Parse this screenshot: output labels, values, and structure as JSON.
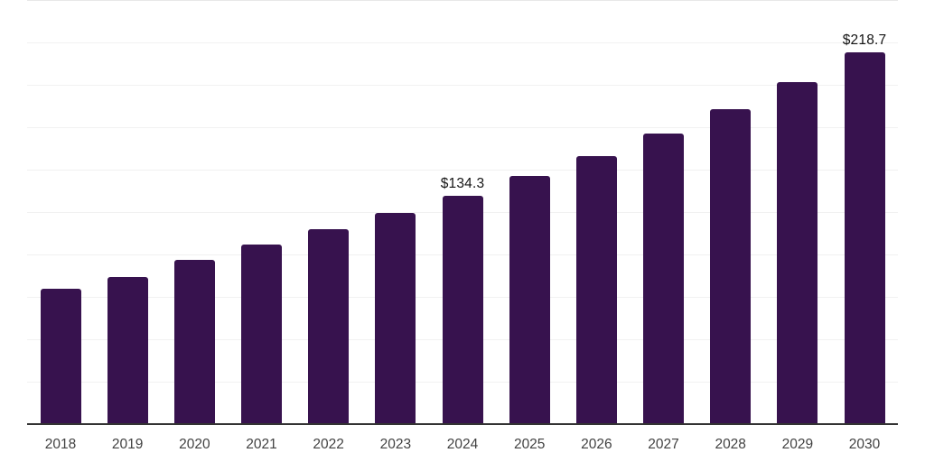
{
  "chart_data": {
    "type": "bar",
    "title": "",
    "xlabel": "",
    "ylabel": "",
    "categories": [
      "2018",
      "2019",
      "2020",
      "2021",
      "2022",
      "2023",
      "2024",
      "2025",
      "2026",
      "2027",
      "2028",
      "2029",
      "2030"
    ],
    "values": [
      79.5,
      86.3,
      96.1,
      105.3,
      114.2,
      123.8,
      134.3,
      145.5,
      157.7,
      170.9,
      185.0,
      201.0,
      218.7
    ],
    "value_prefix": "$",
    "data_labels": [
      {
        "index": 6,
        "text": "$134.3"
      },
      {
        "index": 12,
        "text": "$218.7"
      }
    ],
    "ylim": [
      0,
      250
    ],
    "gridline_step": 25,
    "grid": true,
    "legend": "none",
    "y_tick_labels_visible": false,
    "colors": {
      "bar": "#37124E",
      "gridline": "#f1f1f1",
      "gridline_top": "#e8e8e8",
      "axis_line": "#333333",
      "data_label": "#141414",
      "tick_label": "#424242",
      "background": "#ffffff"
    }
  }
}
